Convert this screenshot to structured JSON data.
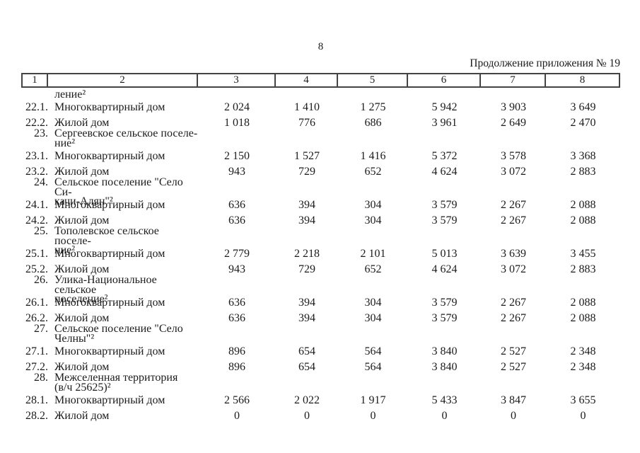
{
  "colors": {
    "background": "#ffffff",
    "text": "#1b1b1b",
    "table_border": "#444444"
  },
  "page": {
    "page_number": "8",
    "continuation_label": "Продолжение приложения № 19"
  },
  "table": {
    "column_headers": [
      "1",
      "2",
      "3",
      "4",
      "5",
      "6",
      "7",
      "8"
    ],
    "rows": [
      {
        "type": "group-cont",
        "num": "",
        "name": "ление²",
        "values": []
      },
      {
        "type": "sub",
        "num": "22.1.",
        "name": "Многоквартирный дом",
        "values": [
          "2 024",
          "1 410",
          "1 275",
          "5 942",
          "3 903",
          "3 649"
        ]
      },
      {
        "type": "sub",
        "num": "22.2.",
        "name": "Жилой дом",
        "values": [
          "1 018",
          "776",
          "686",
          "3 961",
          "2 649",
          "2 470"
        ]
      },
      {
        "type": "group",
        "num": "23.",
        "name": "Сергеевское сельское поселе-\nние²",
        "values": []
      },
      {
        "type": "sub",
        "num": "23.1.",
        "name": "Многоквартирный дом",
        "values": [
          "2 150",
          "1 527",
          "1 416",
          "5 372",
          "3 578",
          "3 368"
        ]
      },
      {
        "type": "sub",
        "num": "23.2.",
        "name": "Жилой дом",
        "values": [
          "943",
          "729",
          "652",
          "4 624",
          "3 072",
          "2 883"
        ]
      },
      {
        "type": "group",
        "num": "24.",
        "name": "Сельское поселение \"Село Си-\nкачи-Алян\"²",
        "values": []
      },
      {
        "type": "sub",
        "num": "24.1.",
        "name": "Многоквартирный дом",
        "values": [
          "636",
          "394",
          "304",
          "3 579",
          "2 267",
          "2 088"
        ]
      },
      {
        "type": "sub",
        "num": "24.2.",
        "name": "Жилой дом",
        "values": [
          "636",
          "394",
          "304",
          "3 579",
          "2 267",
          "2 088"
        ]
      },
      {
        "type": "group",
        "num": "25.",
        "name": "Тополевское сельское поселе-\nние²",
        "values": []
      },
      {
        "type": "sub",
        "num": "25.1.",
        "name": "Многоквартирный дом",
        "values": [
          "2 779",
          "2 218",
          "2 101",
          "5 013",
          "3 639",
          "3 455"
        ]
      },
      {
        "type": "sub",
        "num": "25.2.",
        "name": "Жилой дом",
        "values": [
          "943",
          "729",
          "652",
          "4 624",
          "3 072",
          "2 883"
        ]
      },
      {
        "type": "group",
        "num": "26.",
        "name": "Улика-Национальное сельское\nпоселение²",
        "values": []
      },
      {
        "type": "sub",
        "num": "26.1.",
        "name": "Многоквартирный дом",
        "values": [
          "636",
          "394",
          "304",
          "3 579",
          "2 267",
          "2 088"
        ]
      },
      {
        "type": "sub",
        "num": "26.2.",
        "name": "Жилой дом",
        "values": [
          "636",
          "394",
          "304",
          "3 579",
          "2 267",
          "2 088"
        ]
      },
      {
        "type": "group",
        "num": "27.",
        "name": "Сельское поселение \"Село\nЧелны\"²",
        "values": []
      },
      {
        "type": "sub",
        "num": "27.1.",
        "name": "Многоквартирный дом",
        "values": [
          "896",
          "654",
          "564",
          "3 840",
          "2 527",
          "2 348"
        ]
      },
      {
        "type": "sub",
        "num": "27.2.",
        "name": "Жилой дом",
        "values": [
          "896",
          "654",
          "564",
          "3 840",
          "2 527",
          "2 348"
        ]
      },
      {
        "type": "group",
        "num": "28.",
        "name": "Межселенная территория\n(в/ч 25625)²",
        "values": []
      },
      {
        "type": "sub",
        "num": "28.1.",
        "name": "Многоквартирный дом",
        "values": [
          "2 566",
          "2 022",
          "1 917",
          "5 433",
          "3 847",
          "3 655"
        ]
      },
      {
        "type": "sub",
        "num": "28.2.",
        "name": "Жилой дом",
        "values": [
          "0",
          "0",
          "0",
          "0",
          "0",
          "0"
        ]
      }
    ]
  }
}
